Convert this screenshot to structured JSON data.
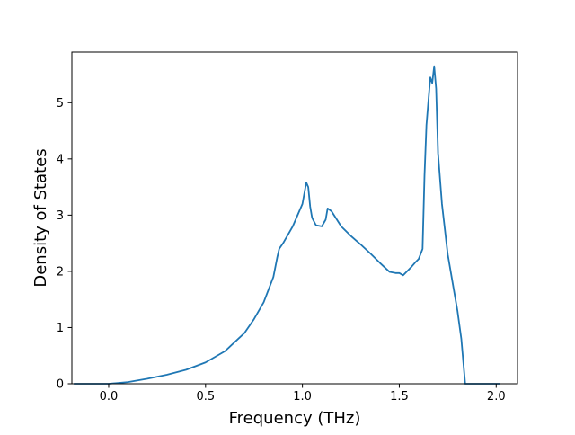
{
  "chart_data": {
    "type": "line",
    "title": "",
    "xlabel": "Frequency (THz)",
    "ylabel": "Density of States",
    "xlim": [
      -0.19,
      2.11
    ],
    "ylim": [
      0,
      5.9
    ],
    "grid": false,
    "xticks": [
      0.0,
      0.5,
      1.0,
      1.5,
      2.0
    ],
    "xtick_labels": [
      "0.0",
      "0.5",
      "1.0",
      "1.5",
      "2.0"
    ],
    "yticks": [
      0,
      1,
      2,
      3,
      4,
      5
    ],
    "ytick_labels": [
      "0",
      "1",
      "2",
      "3",
      "4",
      "5"
    ],
    "series": [
      {
        "color": "#1f77b4",
        "x": [
          -0.18,
          -0.1,
          0.0,
          0.1,
          0.2,
          0.3,
          0.4,
          0.5,
          0.6,
          0.7,
          0.75,
          0.8,
          0.85,
          0.87,
          0.88,
          0.9,
          0.95,
          1.0,
          1.02,
          1.03,
          1.04,
          1.05,
          1.07,
          1.1,
          1.12,
          1.13,
          1.15,
          1.2,
          1.25,
          1.3,
          1.35,
          1.4,
          1.45,
          1.48,
          1.5,
          1.52,
          1.54,
          1.56,
          1.58,
          1.6,
          1.62,
          1.63,
          1.64,
          1.66,
          1.67,
          1.68,
          1.69,
          1.7,
          1.72,
          1.75,
          1.78,
          1.8,
          1.82,
          1.84,
          1.87,
          1.9,
          2.0,
          2.02
        ],
        "y": [
          0,
          0,
          0,
          0.03,
          0.09,
          0.16,
          0.25,
          0.38,
          0.58,
          0.9,
          1.15,
          1.45,
          1.9,
          2.25,
          2.4,
          2.5,
          2.8,
          3.2,
          3.58,
          3.5,
          3.15,
          2.95,
          2.82,
          2.8,
          2.92,
          3.12,
          3.07,
          2.8,
          2.63,
          2.48,
          2.32,
          2.15,
          1.99,
          1.97,
          1.97,
          1.93,
          2.0,
          2.07,
          2.15,
          2.22,
          2.4,
          3.7,
          4.6,
          5.45,
          5.35,
          5.65,
          5.25,
          4.1,
          3.2,
          2.3,
          1.7,
          1.3,
          0.8,
          0.0,
          0.0,
          0.0,
          0.0,
          0.0
        ]
      }
    ]
  }
}
